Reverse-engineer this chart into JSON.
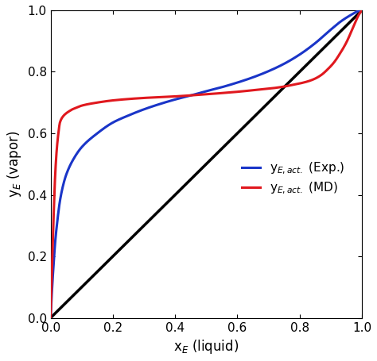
{
  "xlabel": "x$_E$ (liquid)",
  "ylabel": "y$_E$ (vapor)",
  "xlim": [
    0.0,
    1.0
  ],
  "ylim": [
    0.0,
    1.0
  ],
  "xticks": [
    0.0,
    0.2,
    0.4,
    0.6,
    0.8,
    1.0
  ],
  "yticks": [
    0.0,
    0.2,
    0.4,
    0.6,
    0.8,
    1.0
  ],
  "diagonal_color": "black",
  "diagonal_lw": 2.5,
  "red_color": "#e0181e",
  "blue_color": "#1a35c8",
  "curve_lw": 2.2,
  "legend_red": "y$_{E,act.}$ (MD)",
  "legend_blue": "y$_{E,act.}$ (Exp.)",
  "figsize": [
    4.74,
    4.55
  ],
  "dpi": 100,
  "red_x": [
    0.0,
    0.005,
    0.01,
    0.015,
    0.02,
    0.025,
    0.03,
    0.04,
    0.05,
    0.06,
    0.07,
    0.08,
    0.1,
    0.15,
    0.2,
    0.3,
    0.4,
    0.5,
    0.6,
    0.65,
    0.7,
    0.75,
    0.78,
    0.8,
    0.83,
    0.85,
    0.87,
    0.89,
    0.91,
    0.93,
    0.95,
    0.97,
    0.99,
    1.0
  ],
  "red_y": [
    0.0,
    0.18,
    0.34,
    0.47,
    0.55,
    0.6,
    0.635,
    0.655,
    0.665,
    0.672,
    0.678,
    0.682,
    0.69,
    0.7,
    0.707,
    0.715,
    0.72,
    0.727,
    0.735,
    0.74,
    0.745,
    0.752,
    0.758,
    0.762,
    0.77,
    0.778,
    0.79,
    0.808,
    0.83,
    0.86,
    0.895,
    0.94,
    0.985,
    1.0
  ],
  "blue_x": [
    0.0,
    0.005,
    0.01,
    0.015,
    0.02,
    0.03,
    0.04,
    0.05,
    0.07,
    0.1,
    0.15,
    0.2,
    0.25,
    0.3,
    0.35,
    0.4,
    0.45,
    0.5,
    0.55,
    0.6,
    0.65,
    0.7,
    0.75,
    0.8,
    0.85,
    0.9,
    0.93,
    0.96,
    0.99,
    1.0
  ],
  "blue_y": [
    0.0,
    0.1,
    0.18,
    0.25,
    0.3,
    0.38,
    0.43,
    0.465,
    0.51,
    0.555,
    0.6,
    0.635,
    0.658,
    0.678,
    0.695,
    0.71,
    0.723,
    0.737,
    0.75,
    0.765,
    0.782,
    0.802,
    0.826,
    0.856,
    0.893,
    0.937,
    0.962,
    0.982,
    0.998,
    1.0
  ]
}
